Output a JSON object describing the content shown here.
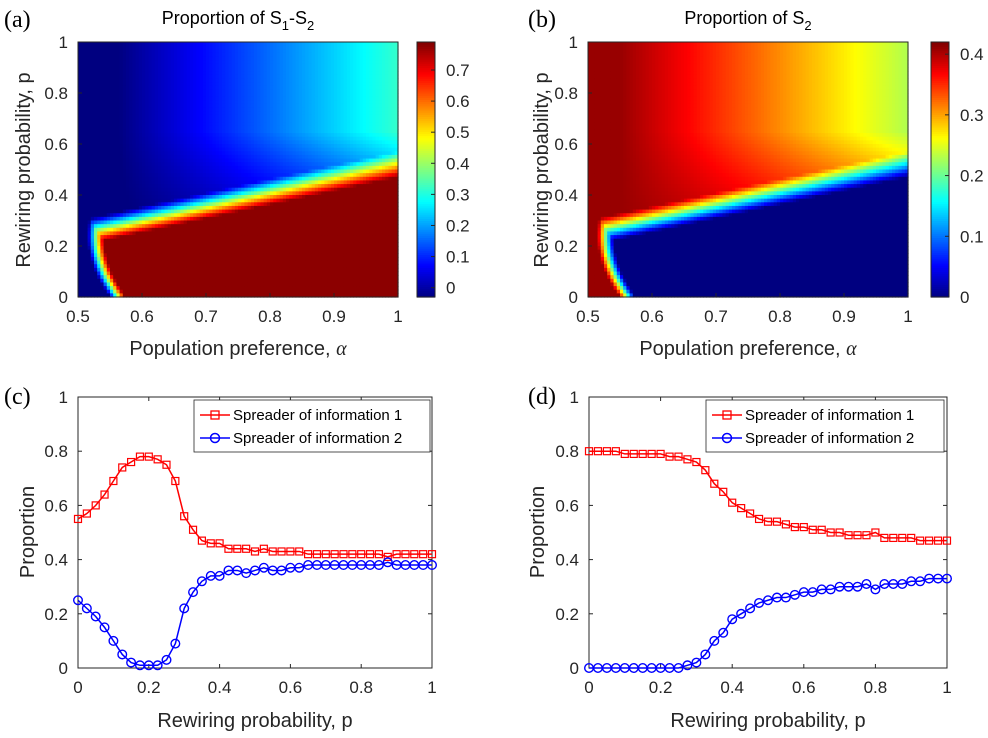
{
  "colors": {
    "series1": "#ff0000",
    "series2": "#0000ff",
    "colormap": "jet"
  },
  "chart_data": [
    {
      "panel": "(a)",
      "type": "heatmap",
      "title_main": "Proportion of S",
      "title_sub1": "1",
      "title_sep": "-S",
      "title_sub2": "2",
      "xlabel": "Population preference, ",
      "xlabel_symbol": "α",
      "ylabel": "Rewiring probability, p",
      "xlim": [
        0.5,
        1
      ],
      "ylim": [
        0,
        1
      ],
      "xticks": [
        "0.5",
        "0.6",
        "0.7",
        "0.8",
        "0.9",
        "1"
      ],
      "yticks": [
        "0",
        "0.2",
        "0.4",
        "0.6",
        "0.8",
        "1"
      ],
      "colorbar_range": [
        -0.03,
        0.79
      ],
      "colorbar_ticks": [
        "0",
        "0.1",
        "0.2",
        "0.3",
        "0.4",
        "0.5",
        "0.6",
        "0.7"
      ],
      "field": "spreader1_minus_spreader2"
    },
    {
      "panel": "(b)",
      "type": "heatmap",
      "title_main": "Proportion of S",
      "title_sub1": "2",
      "xlabel": "Population preference, ",
      "xlabel_symbol": "α",
      "ylabel": "Rewiring probability, p",
      "xlim": [
        0.5,
        1
      ],
      "ylim": [
        0,
        1
      ],
      "xticks": [
        "0.5",
        "0.6",
        "0.7",
        "0.8",
        "0.9",
        "1"
      ],
      "yticks": [
        "0",
        "0.2",
        "0.4",
        "0.6",
        "0.8",
        "1"
      ],
      "colorbar_range": [
        0,
        0.42
      ],
      "colorbar_ticks": [
        "0",
        "0.1",
        "0.2",
        "0.3",
        "0.4"
      ],
      "field": "spreader2"
    },
    {
      "panel": "(c)",
      "type": "line",
      "xlabel": "Rewiring probability, p",
      "ylabel": "Proportion",
      "xlim": [
        0,
        1
      ],
      "ylim": [
        0,
        1
      ],
      "xticks": [
        "0",
        "0.2",
        "0.4",
        "0.6",
        "0.8",
        "1"
      ],
      "yticks": [
        "0",
        "0.2",
        "0.4",
        "0.6",
        "0.8",
        "1"
      ],
      "legend_position": "top-right",
      "x": [
        0,
        0.025,
        0.05,
        0.075,
        0.1,
        0.125,
        0.15,
        0.175,
        0.2,
        0.225,
        0.25,
        0.275,
        0.3,
        0.325,
        0.35,
        0.375,
        0.4,
        0.425,
        0.45,
        0.475,
        0.5,
        0.525,
        0.55,
        0.575,
        0.6,
        0.625,
        0.65,
        0.675,
        0.7,
        0.725,
        0.75,
        0.775,
        0.8,
        0.825,
        0.85,
        0.875,
        0.9,
        0.925,
        0.95,
        0.975,
        1
      ],
      "series": [
        {
          "name": "Spreader of information 1",
          "color": "#ff0000",
          "marker": "square",
          "values": [
            0.55,
            0.57,
            0.6,
            0.64,
            0.69,
            0.74,
            0.76,
            0.78,
            0.78,
            0.77,
            0.75,
            0.69,
            0.56,
            0.51,
            0.47,
            0.46,
            0.46,
            0.44,
            0.44,
            0.44,
            0.43,
            0.44,
            0.43,
            0.43,
            0.43,
            0.43,
            0.42,
            0.42,
            0.42,
            0.42,
            0.42,
            0.42,
            0.42,
            0.42,
            0.42,
            0.41,
            0.42,
            0.42,
            0.42,
            0.42,
            0.42
          ]
        },
        {
          "name": "Spreader of information 2",
          "color": "#0000ff",
          "marker": "circle",
          "values": [
            0.25,
            0.22,
            0.19,
            0.15,
            0.1,
            0.05,
            0.02,
            0.01,
            0.01,
            0.01,
            0.03,
            0.09,
            0.22,
            0.28,
            0.32,
            0.34,
            0.34,
            0.36,
            0.36,
            0.35,
            0.36,
            0.37,
            0.36,
            0.36,
            0.37,
            0.37,
            0.38,
            0.38,
            0.38,
            0.38,
            0.38,
            0.38,
            0.38,
            0.38,
            0.38,
            0.39,
            0.38,
            0.38,
            0.38,
            0.38,
            0.38
          ]
        }
      ]
    },
    {
      "panel": "(d)",
      "type": "line",
      "xlabel": "Rewiring probability, p",
      "ylabel": "Proportion",
      "xlim": [
        0,
        1
      ],
      "ylim": [
        0,
        1
      ],
      "xticks": [
        "0",
        "0.2",
        "0.4",
        "0.6",
        "0.8",
        "1"
      ],
      "yticks": [
        "0",
        "0.2",
        "0.4",
        "0.6",
        "0.8",
        "1"
      ],
      "legend_position": "top-right",
      "x": [
        0,
        0.025,
        0.05,
        0.075,
        0.1,
        0.125,
        0.15,
        0.175,
        0.2,
        0.225,
        0.25,
        0.275,
        0.3,
        0.325,
        0.35,
        0.375,
        0.4,
        0.425,
        0.45,
        0.475,
        0.5,
        0.525,
        0.55,
        0.575,
        0.6,
        0.625,
        0.65,
        0.675,
        0.7,
        0.725,
        0.75,
        0.775,
        0.8,
        0.825,
        0.85,
        0.875,
        0.9,
        0.925,
        0.95,
        0.975,
        1
      ],
      "series": [
        {
          "name": "Spreader of information 1",
          "color": "#ff0000",
          "marker": "square",
          "values": [
            0.8,
            0.8,
            0.8,
            0.8,
            0.79,
            0.79,
            0.79,
            0.79,
            0.79,
            0.78,
            0.78,
            0.77,
            0.76,
            0.73,
            0.68,
            0.65,
            0.61,
            0.59,
            0.57,
            0.55,
            0.54,
            0.54,
            0.53,
            0.52,
            0.52,
            0.51,
            0.51,
            0.5,
            0.5,
            0.49,
            0.49,
            0.49,
            0.5,
            0.48,
            0.48,
            0.48,
            0.48,
            0.47,
            0.47,
            0.47,
            0.47
          ]
        },
        {
          "name": "Spreader of information 2",
          "color": "#0000ff",
          "marker": "circle",
          "values": [
            0.0,
            0.0,
            0.0,
            0.0,
            0.0,
            0.0,
            0.0,
            0.0,
            0.0,
            0.0,
            0.0,
            0.01,
            0.02,
            0.05,
            0.1,
            0.13,
            0.18,
            0.2,
            0.22,
            0.24,
            0.25,
            0.26,
            0.26,
            0.27,
            0.28,
            0.28,
            0.29,
            0.29,
            0.3,
            0.3,
            0.3,
            0.31,
            0.29,
            0.31,
            0.31,
            0.31,
            0.32,
            0.32,
            0.33,
            0.33,
            0.33
          ]
        }
      ]
    }
  ]
}
